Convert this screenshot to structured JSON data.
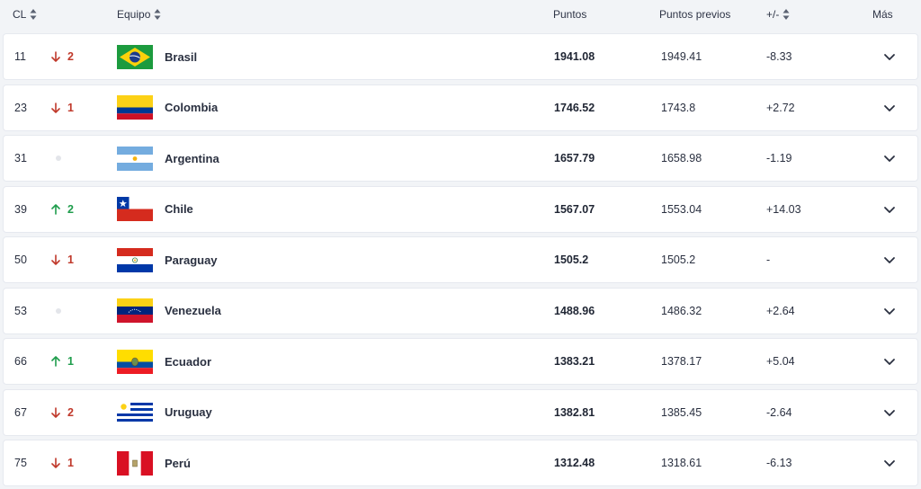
{
  "header": {
    "rank": "CL",
    "team": "Equipo",
    "points": "Puntos",
    "prev_points": "Puntos previos",
    "diff": "+/-",
    "more": "Más"
  },
  "colors": {
    "down": "#c0392b",
    "up": "#1f9d4c",
    "neutral_dot": "#e3e5ea"
  },
  "rows": [
    {
      "rank": "11",
      "move": "down",
      "move_value": "2",
      "flag_icon": "brazil-flag-icon",
      "team": "Brasil",
      "points": "1941.08",
      "prev": "1949.41",
      "diff": "-8.33"
    },
    {
      "rank": "23",
      "move": "down",
      "move_value": "1",
      "flag_icon": "colombia-flag-icon",
      "team": "Colombia",
      "points": "1746.52",
      "prev": "1743.8",
      "diff": "+2.72"
    },
    {
      "rank": "31",
      "move": "none",
      "move_value": "",
      "flag_icon": "argentina-flag-icon",
      "team": "Argentina",
      "points": "1657.79",
      "prev": "1658.98",
      "diff": "-1.19"
    },
    {
      "rank": "39",
      "move": "up",
      "move_value": "2",
      "flag_icon": "chile-flag-icon",
      "team": "Chile",
      "points": "1567.07",
      "prev": "1553.04",
      "diff": "+14.03"
    },
    {
      "rank": "50",
      "move": "down",
      "move_value": "1",
      "flag_icon": "paraguay-flag-icon",
      "team": "Paraguay",
      "points": "1505.2",
      "prev": "1505.2",
      "diff": "-"
    },
    {
      "rank": "53",
      "move": "none",
      "move_value": "",
      "flag_icon": "venezuela-flag-icon",
      "team": "Venezuela",
      "points": "1488.96",
      "prev": "1486.32",
      "diff": "+2.64"
    },
    {
      "rank": "66",
      "move": "up",
      "move_value": "1",
      "flag_icon": "ecuador-flag-icon",
      "team": "Ecuador",
      "points": "1383.21",
      "prev": "1378.17",
      "diff": "+5.04"
    },
    {
      "rank": "67",
      "move": "down",
      "move_value": "2",
      "flag_icon": "uruguay-flag-icon",
      "team": "Uruguay",
      "points": "1382.81",
      "prev": "1385.45",
      "diff": "-2.64"
    },
    {
      "rank": "75",
      "move": "down",
      "move_value": "1",
      "flag_icon": "peru-flag-icon",
      "team": "Perú",
      "points": "1312.48",
      "prev": "1318.61",
      "diff": "-6.13"
    }
  ]
}
